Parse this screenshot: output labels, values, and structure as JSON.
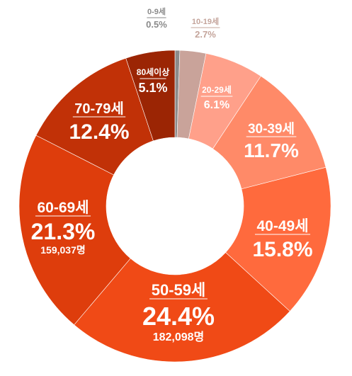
{
  "chart_data": {
    "type": "pie",
    "donut": true,
    "title": "",
    "slices": [
      {
        "label": "0-9세",
        "value": 0.5,
        "display": "0.5%",
        "count": "",
        "color": "#8b8b8b"
      },
      {
        "label": "10-19세",
        "value": 2.7,
        "display": "2.7%",
        "count": "",
        "color": "#c9a39a"
      },
      {
        "label": "20-29세",
        "value": 6.1,
        "display": "6.1%",
        "count": "",
        "color": "#ffa08a"
      },
      {
        "label": "30-39세",
        "value": 11.7,
        "display": "11.7%",
        "count": "",
        "color": "#ff8a68"
      },
      {
        "label": "40-49세",
        "value": 15.8,
        "display": "15.8%",
        "count": "",
        "color": "#ff6a3d"
      },
      {
        "label": "50-59세",
        "value": 24.4,
        "display": "24.4%",
        "count": "182,098명",
        "color": "#f04a16"
      },
      {
        "label": "60-69세",
        "value": 21.3,
        "display": "21.3%",
        "count": "159,037명",
        "color": "#de3d0c"
      },
      {
        "label": "70-79세",
        "value": 12.4,
        "display": "12.4%",
        "count": "",
        "color": "#c13107"
      },
      {
        "label": "80세이상",
        "value": 5.1,
        "display": "5.1%",
        "count": "",
        "color": "#9b2504"
      }
    ]
  }
}
